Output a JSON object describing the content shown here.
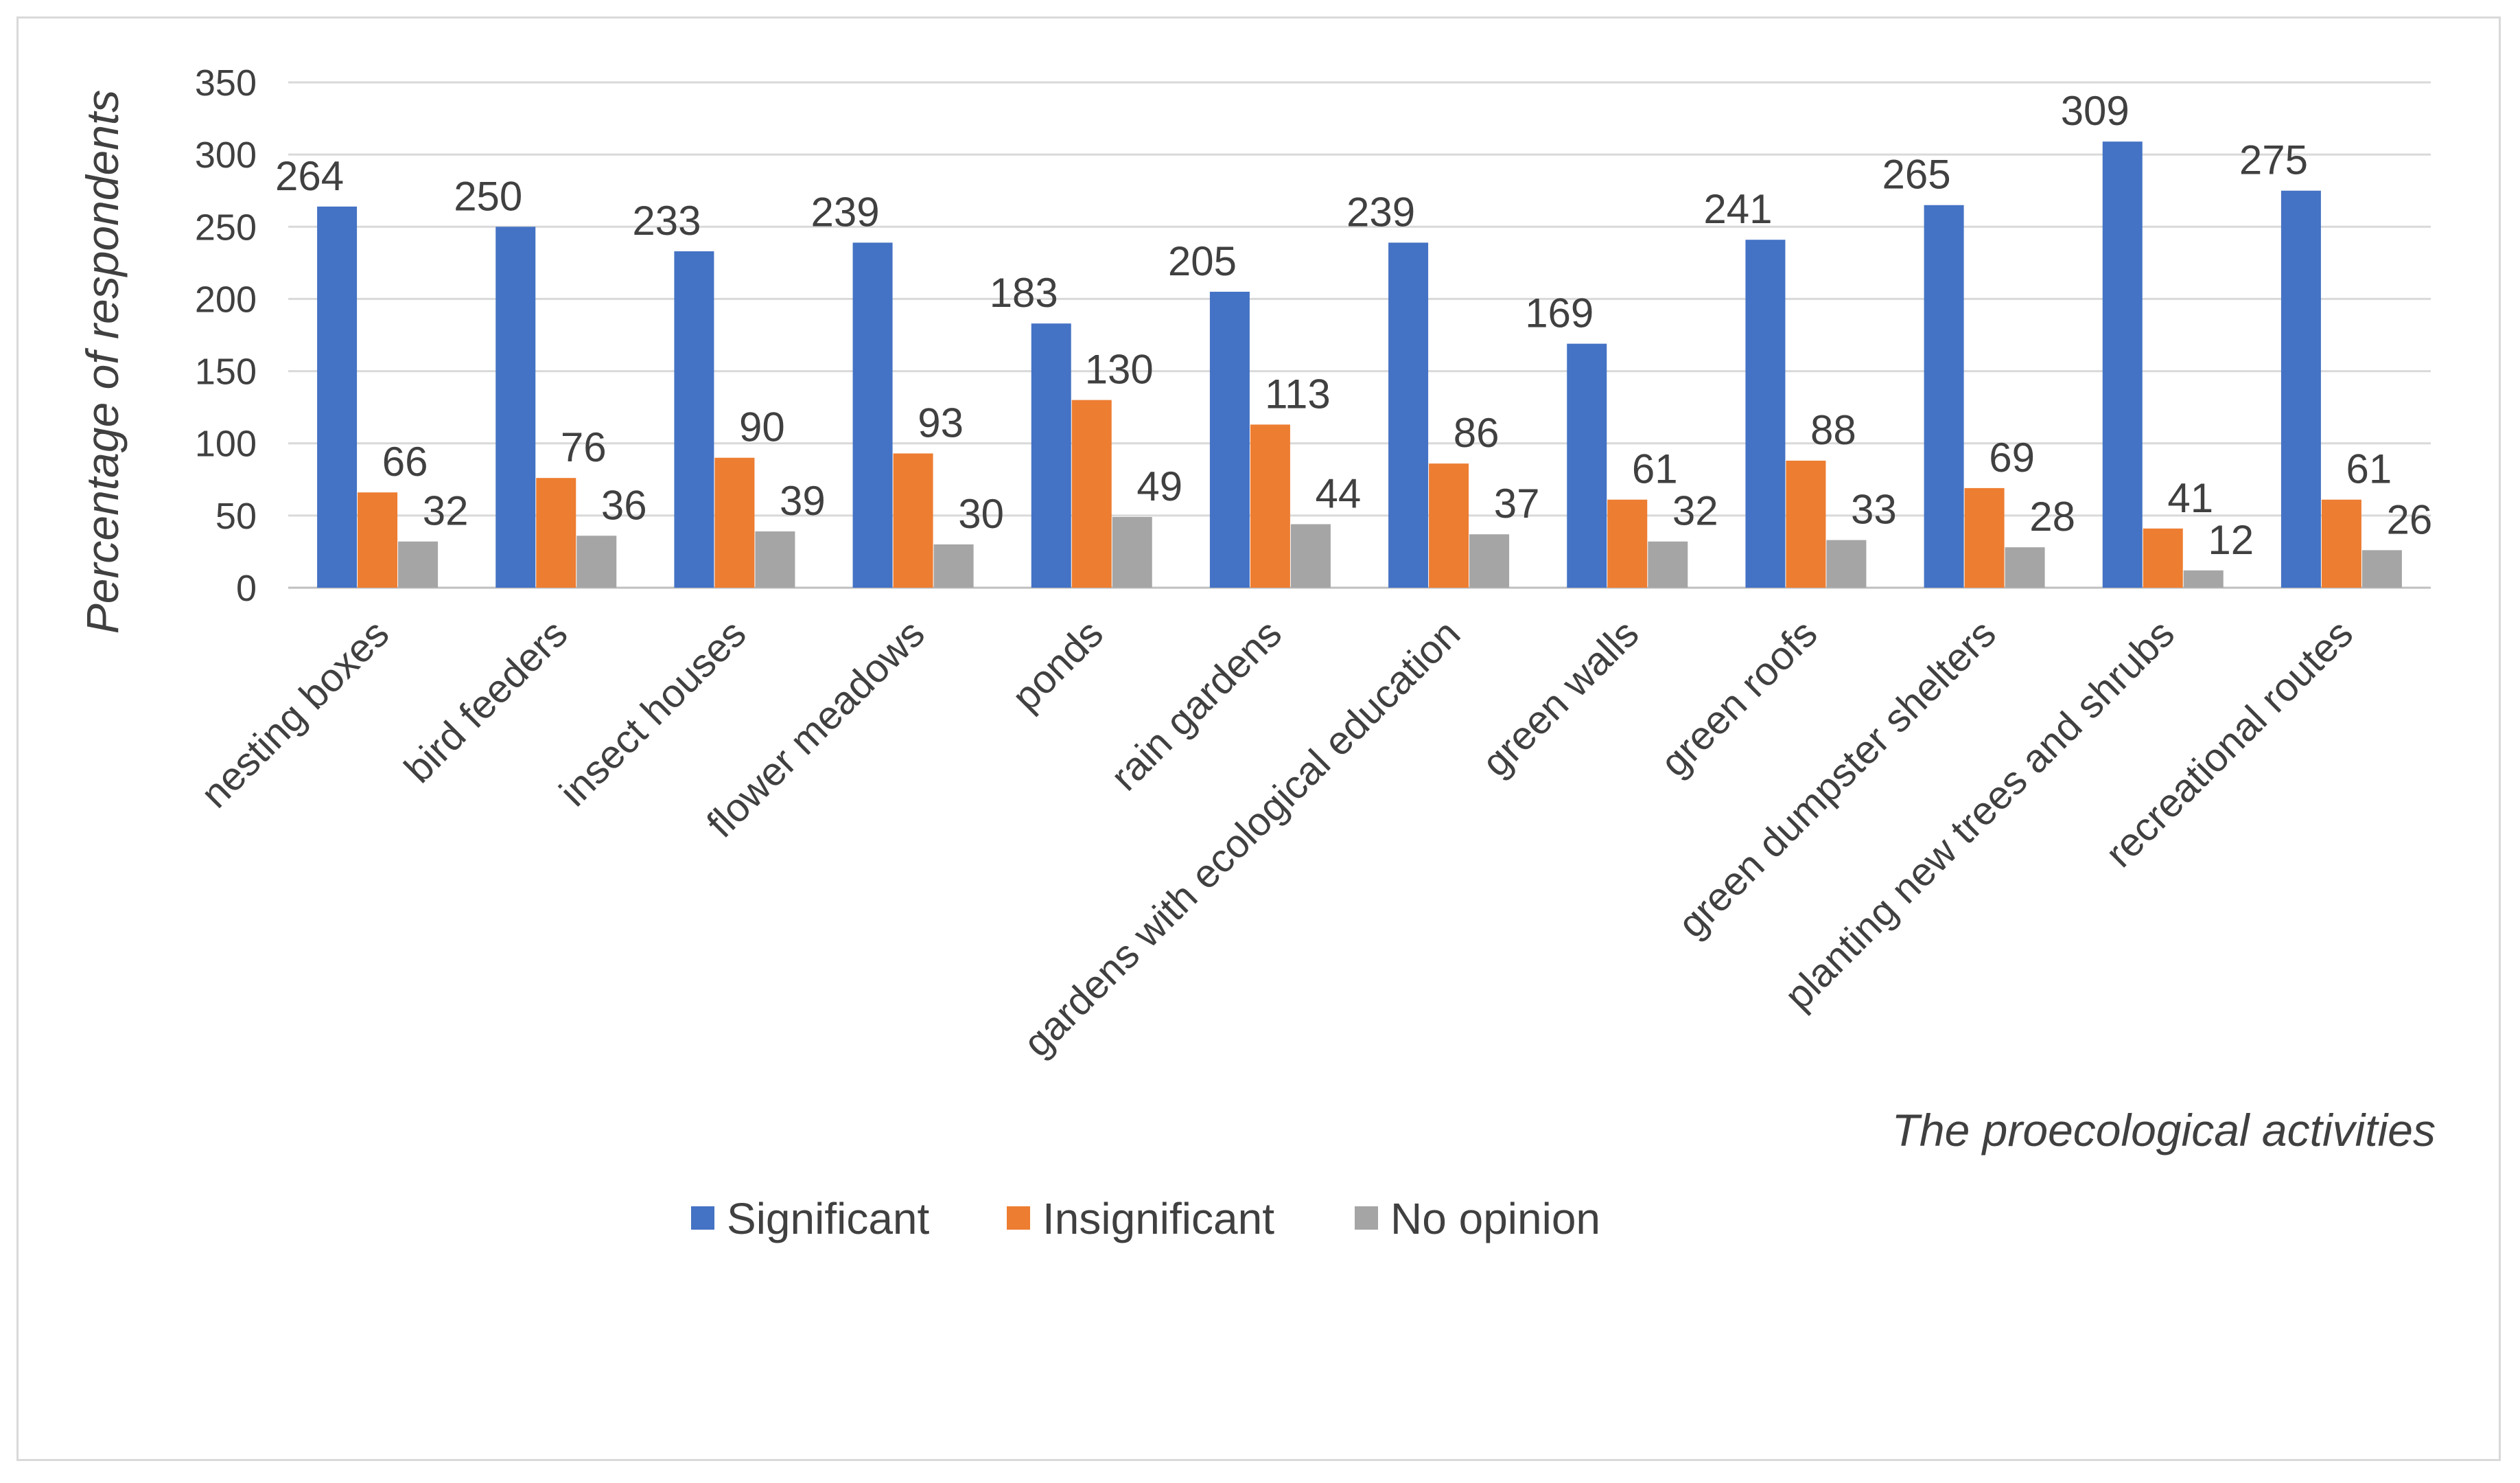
{
  "chart_data": {
    "type": "bar",
    "title": "",
    "xlabel": "The proecological activities",
    "ylabel": "Percentage of respondents",
    "ylim": [
      0,
      350
    ],
    "yticks": [
      0,
      50,
      100,
      150,
      200,
      250,
      300,
      350
    ],
    "grid": true,
    "legend_position": "bottom",
    "categories": [
      "nesting boxes",
      "bird feeders",
      "insect houses",
      "flower meadows",
      "ponds",
      "rain gardens",
      "gardens with ecological education",
      "green walls",
      "green roofs",
      "green dumpster shelters",
      "planting new trees and shrubs",
      "recreational routes"
    ],
    "series": [
      {
        "name": "Significant",
        "color": "#4472c4",
        "values": [
          264,
          250,
          233,
          239,
          183,
          205,
          239,
          169,
          241,
          265,
          309,
          275
        ]
      },
      {
        "name": "Insignificant",
        "color": "#ed7d31",
        "values": [
          66,
          76,
          90,
          93,
          130,
          113,
          86,
          61,
          88,
          69,
          41,
          61
        ]
      },
      {
        "name": "No opinion",
        "color": "#a5a5a5",
        "values": [
          32,
          36,
          39,
          30,
          49,
          44,
          37,
          32,
          33,
          28,
          12,
          26
        ]
      }
    ]
  }
}
